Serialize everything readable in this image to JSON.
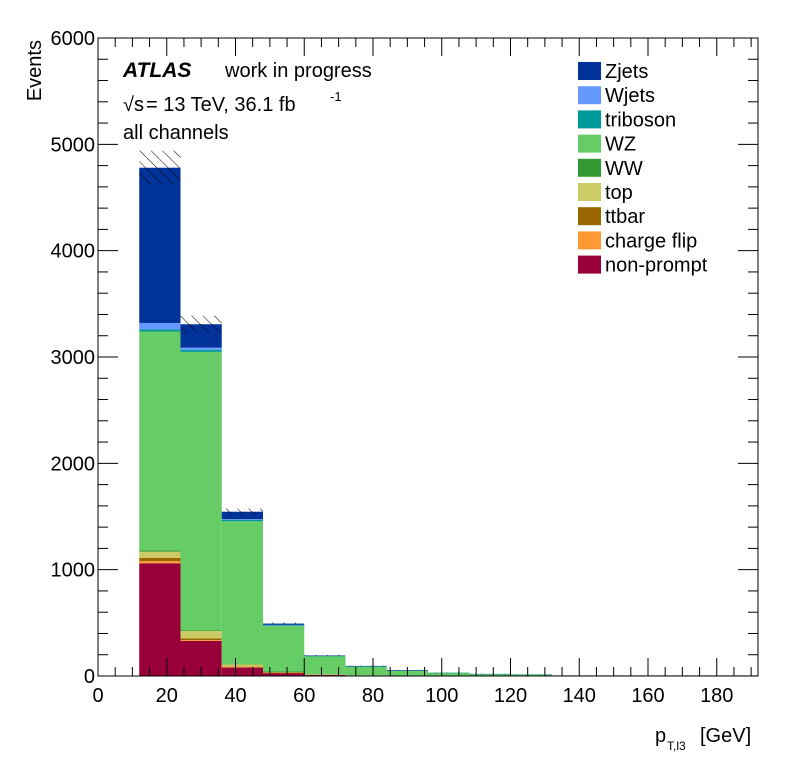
{
  "chart_data": {
    "type": "bar",
    "stacked": true,
    "xlabel_main": "p",
    "xlabel_sub": "T,l3",
    "xlabel_unit": "[GeV]",
    "ylabel": "Events",
    "xlim": [
      0,
      192
    ],
    "ylim": [
      0,
      6000
    ],
    "x_ticks": [
      "0",
      "20",
      "40",
      "60",
      "80",
      "100",
      "120",
      "140",
      "160",
      "180"
    ],
    "y_ticks": [
      "0",
      "1000",
      "2000",
      "3000",
      "4000",
      "5000",
      "6000"
    ],
    "bin_edges": [
      12,
      24,
      36,
      48,
      60,
      72,
      84,
      96,
      108,
      120,
      132,
      192
    ],
    "series": [
      {
        "name": "non-prompt",
        "color": "#99003a",
        "values": [
          1060,
          330,
          80,
          30,
          12,
          5,
          3,
          2,
          1,
          1,
          1
        ]
      },
      {
        "name": "charge flip",
        "color": "#ff9933",
        "values": [
          20,
          8,
          3,
          1,
          0,
          0,
          0,
          0,
          0,
          0,
          0
        ]
      },
      {
        "name": "ttbar",
        "color": "#996600",
        "values": [
          30,
          15,
          5,
          2,
          1,
          0,
          0,
          0,
          0,
          0,
          0
        ]
      },
      {
        "name": "top",
        "color": "#cccc66",
        "values": [
          60,
          70,
          25,
          8,
          3,
          1,
          1,
          0,
          0,
          0,
          0
        ]
      },
      {
        "name": "WW",
        "color": "#339933",
        "values": [
          10,
          5,
          2,
          1,
          0,
          0,
          0,
          0,
          0,
          0,
          0
        ]
      },
      {
        "name": "WZ",
        "color": "#66cc66",
        "values": [
          2060,
          2620,
          1340,
          430,
          170,
          85,
          48,
          28,
          18,
          13,
          5
        ]
      },
      {
        "name": "triboson",
        "color": "#009999",
        "values": [
          20,
          20,
          15,
          8,
          3,
          2,
          1,
          1,
          1,
          1,
          0
        ]
      },
      {
        "name": "Wjets",
        "color": "#6699ff",
        "values": [
          60,
          20,
          5,
          1,
          0,
          0,
          0,
          0,
          0,
          0,
          0
        ]
      },
      {
        "name": "Zjets",
        "color": "#003399",
        "values": [
          1460,
          220,
          70,
          12,
          4,
          2,
          1,
          0,
          0,
          0,
          0
        ]
      }
    ],
    "uncertainty": [
      160,
      80,
      30,
      10,
      4,
      2,
      1,
      1,
      1,
      1,
      1
    ],
    "legend_order": [
      "Zjets",
      "Wjets",
      "triboson",
      "WZ",
      "WW",
      "top",
      "ttbar",
      "charge flip",
      "non-prompt"
    ],
    "legend_position": "top-right"
  },
  "annotations": {
    "atlas": "ATLAS",
    "atlas_status": "work in progress",
    "energy_sqrt": "√s",
    "energy_rest": " = 13 TeV, 36.1 fb",
    "energy_exp": "-1",
    "channel": "all channels"
  }
}
